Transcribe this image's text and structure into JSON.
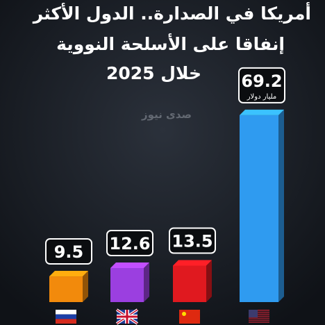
{
  "chart_data": {
    "type": "bar",
    "title": [
      "أمريكا في الصدارة.. الدول الأكثر",
      "إنفاقا على الأسلحة النووية",
      "خلال 2025"
    ],
    "watermark": "صدى نيوز",
    "unit_label": "مليار دولار",
    "categories": [
      null,
      null,
      null,
      null
    ],
    "values": [
      9.5,
      12.6,
      13.5,
      69.2
    ],
    "colors": [
      "#f28a0c",
      "#9b3fe0",
      "#e0191f",
      "#2f9bf0"
    ],
    "ylim": [
      0,
      72
    ]
  }
}
